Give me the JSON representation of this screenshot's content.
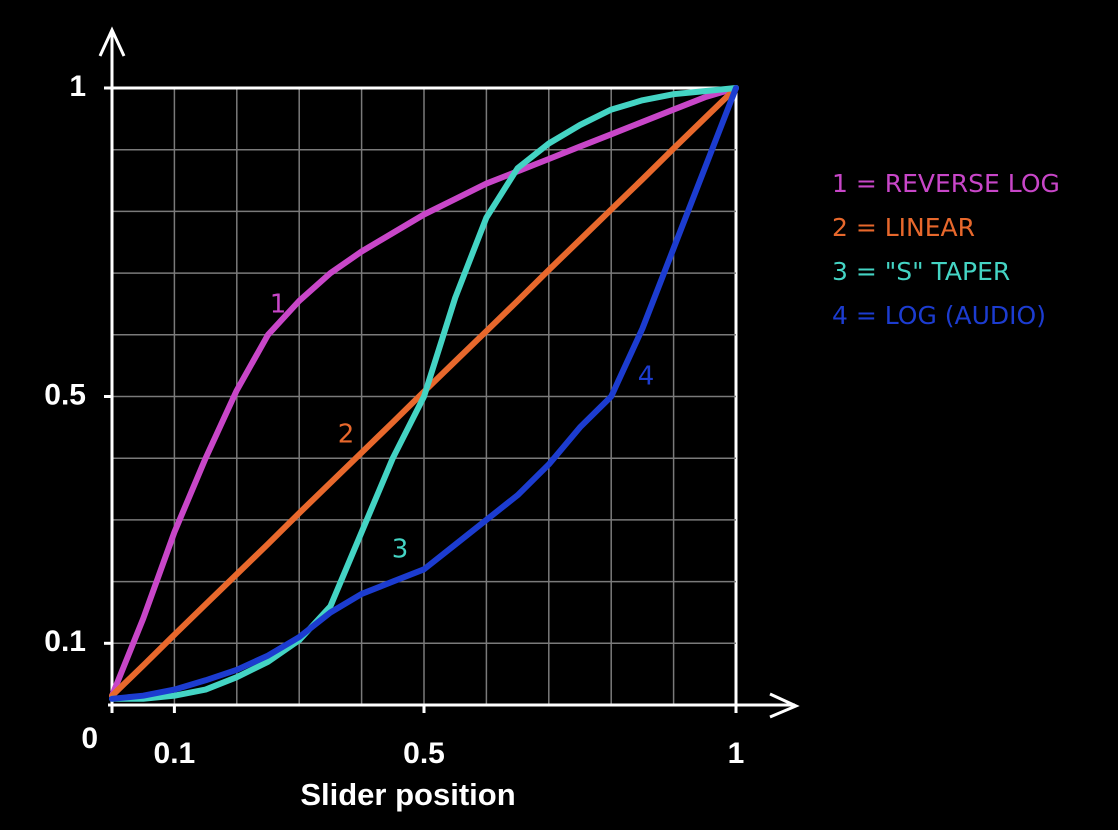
{
  "chart_data": {
    "type": "line",
    "x_label": "Slider position",
    "x": [
      0,
      0.05,
      0.1,
      0.15,
      0.2,
      0.25,
      0.3,
      0.35,
      0.4,
      0.45,
      0.5,
      0.55,
      0.6,
      0.65,
      0.7,
      0.75,
      0.8,
      0.85,
      0.9,
      0.95,
      1
    ],
    "series": [
      {
        "name": "1 = REVERSE LOG",
        "curve_label": "1",
        "color": "#c846c8",
        "values": [
          0.015,
          0.14,
          0.28,
          0.4,
          0.51,
          0.6,
          0.655,
          0.7,
          0.735,
          0.765,
          0.795,
          0.82,
          0.845,
          0.865,
          0.885,
          0.905,
          0.925,
          0.945,
          0.965,
          0.985,
          1
        ]
      },
      {
        "name": "2 = LINEAR",
        "curve_label": "2",
        "color": "#e8682c",
        "values": [
          0.015,
          0.064,
          0.114,
          0.163,
          0.212,
          0.261,
          0.311,
          0.36,
          0.409,
          0.458,
          0.508,
          0.557,
          0.606,
          0.655,
          0.705,
          0.754,
          0.803,
          0.852,
          0.902,
          0.951,
          1
        ]
      },
      {
        "name": "3 = \"S\" TAPER",
        "curve_label": "3",
        "color": "#44d4c4",
        "values": [
          0.01,
          0.01,
          0.015,
          0.025,
          0.045,
          0.07,
          0.105,
          0.16,
          0.28,
          0.4,
          0.5,
          0.66,
          0.79,
          0.87,
          0.91,
          0.94,
          0.965,
          0.98,
          0.99,
          0.995,
          1
        ]
      },
      {
        "name": "4 = LOG (AUDIO)",
        "curve_label": "4",
        "color": "#1c3cd0",
        "values": [
          0.01,
          0.015,
          0.025,
          0.04,
          0.057,
          0.08,
          0.11,
          0.15,
          0.18,
          0.2,
          0.22,
          0.26,
          0.3,
          0.34,
          0.39,
          0.45,
          0.5,
          0.61,
          0.74,
          0.87,
          1
        ]
      }
    ],
    "xlim": [
      0,
      1
    ],
    "ylim": [
      0,
      1
    ],
    "xticks": [
      0,
      0.1,
      0.5,
      1
    ],
    "yticks": [
      0.1,
      0.5,
      1
    ],
    "xgrid": [
      0,
      0.1,
      0.2,
      0.3,
      0.4,
      0.5,
      0.6,
      0.7,
      0.8,
      0.9,
      1
    ],
    "ygrid": [
      0,
      0.1,
      0.2,
      0.3,
      0.4,
      0.5,
      0.6,
      0.7,
      0.8,
      0.9,
      1
    ],
    "grid": true,
    "legend": "right"
  }
}
